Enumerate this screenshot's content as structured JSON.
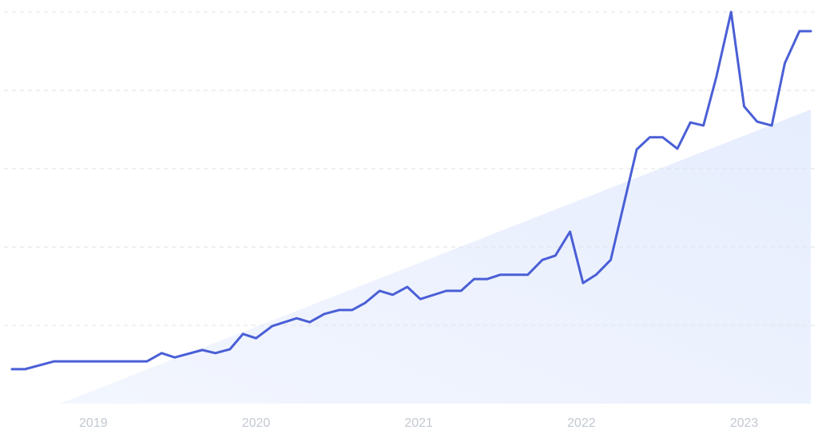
{
  "chart_data": {
    "type": "line",
    "x": [
      2018.5,
      2018.58,
      2018.76,
      2019.33,
      2019.42,
      2019.5,
      2019.67,
      2019.75,
      2019.84,
      2019.92,
      2020.0,
      2020.1,
      2020.25,
      2020.33,
      2020.42,
      2020.51,
      2020.59,
      2020.67,
      2020.76,
      2020.84,
      2020.93,
      2021.01,
      2021.17,
      2021.26,
      2021.34,
      2021.42,
      2021.5,
      2021.67,
      2021.76,
      2021.84,
      2021.93,
      2022.01,
      2022.09,
      2022.18,
      2022.34,
      2022.42,
      2022.5,
      2022.59,
      2022.67,
      2022.75,
      2022.83,
      2022.92,
      2023.0,
      2023.08,
      2023.17,
      2023.25,
      2023.34,
      2023.41
    ],
    "series": [
      {
        "color": "#4a5fd6",
        "values": [
          8.8,
          8.8,
          10.8,
          10.8,
          12.9,
          11.8,
          13.7,
          12.9,
          13.9,
          17.8,
          16.7,
          19.8,
          21.8,
          20.8,
          22.9,
          23.9,
          23.9,
          25.7,
          28.8,
          27.8,
          29.8,
          26.7,
          28.8,
          28.8,
          31.8,
          31.8,
          32.9,
          32.9,
          36.7,
          37.8,
          43.9,
          30.8,
          32.9,
          36.7,
          64.9,
          68.0,
          68.0,
          65.1,
          71.8,
          71.0,
          83.5,
          100,
          75.9,
          72.0,
          71.0,
          86.9,
          95.1,
          95.1
        ]
      }
    ],
    "xlim": [
      2018.5,
      2023.41
    ],
    "xticks": [
      2019,
      2020,
      2021,
      2022,
      2023
    ],
    "ylim": [
      0,
      100
    ],
    "yticks": [
      20,
      40,
      60,
      80,
      100
    ],
    "grid": true
  }
}
